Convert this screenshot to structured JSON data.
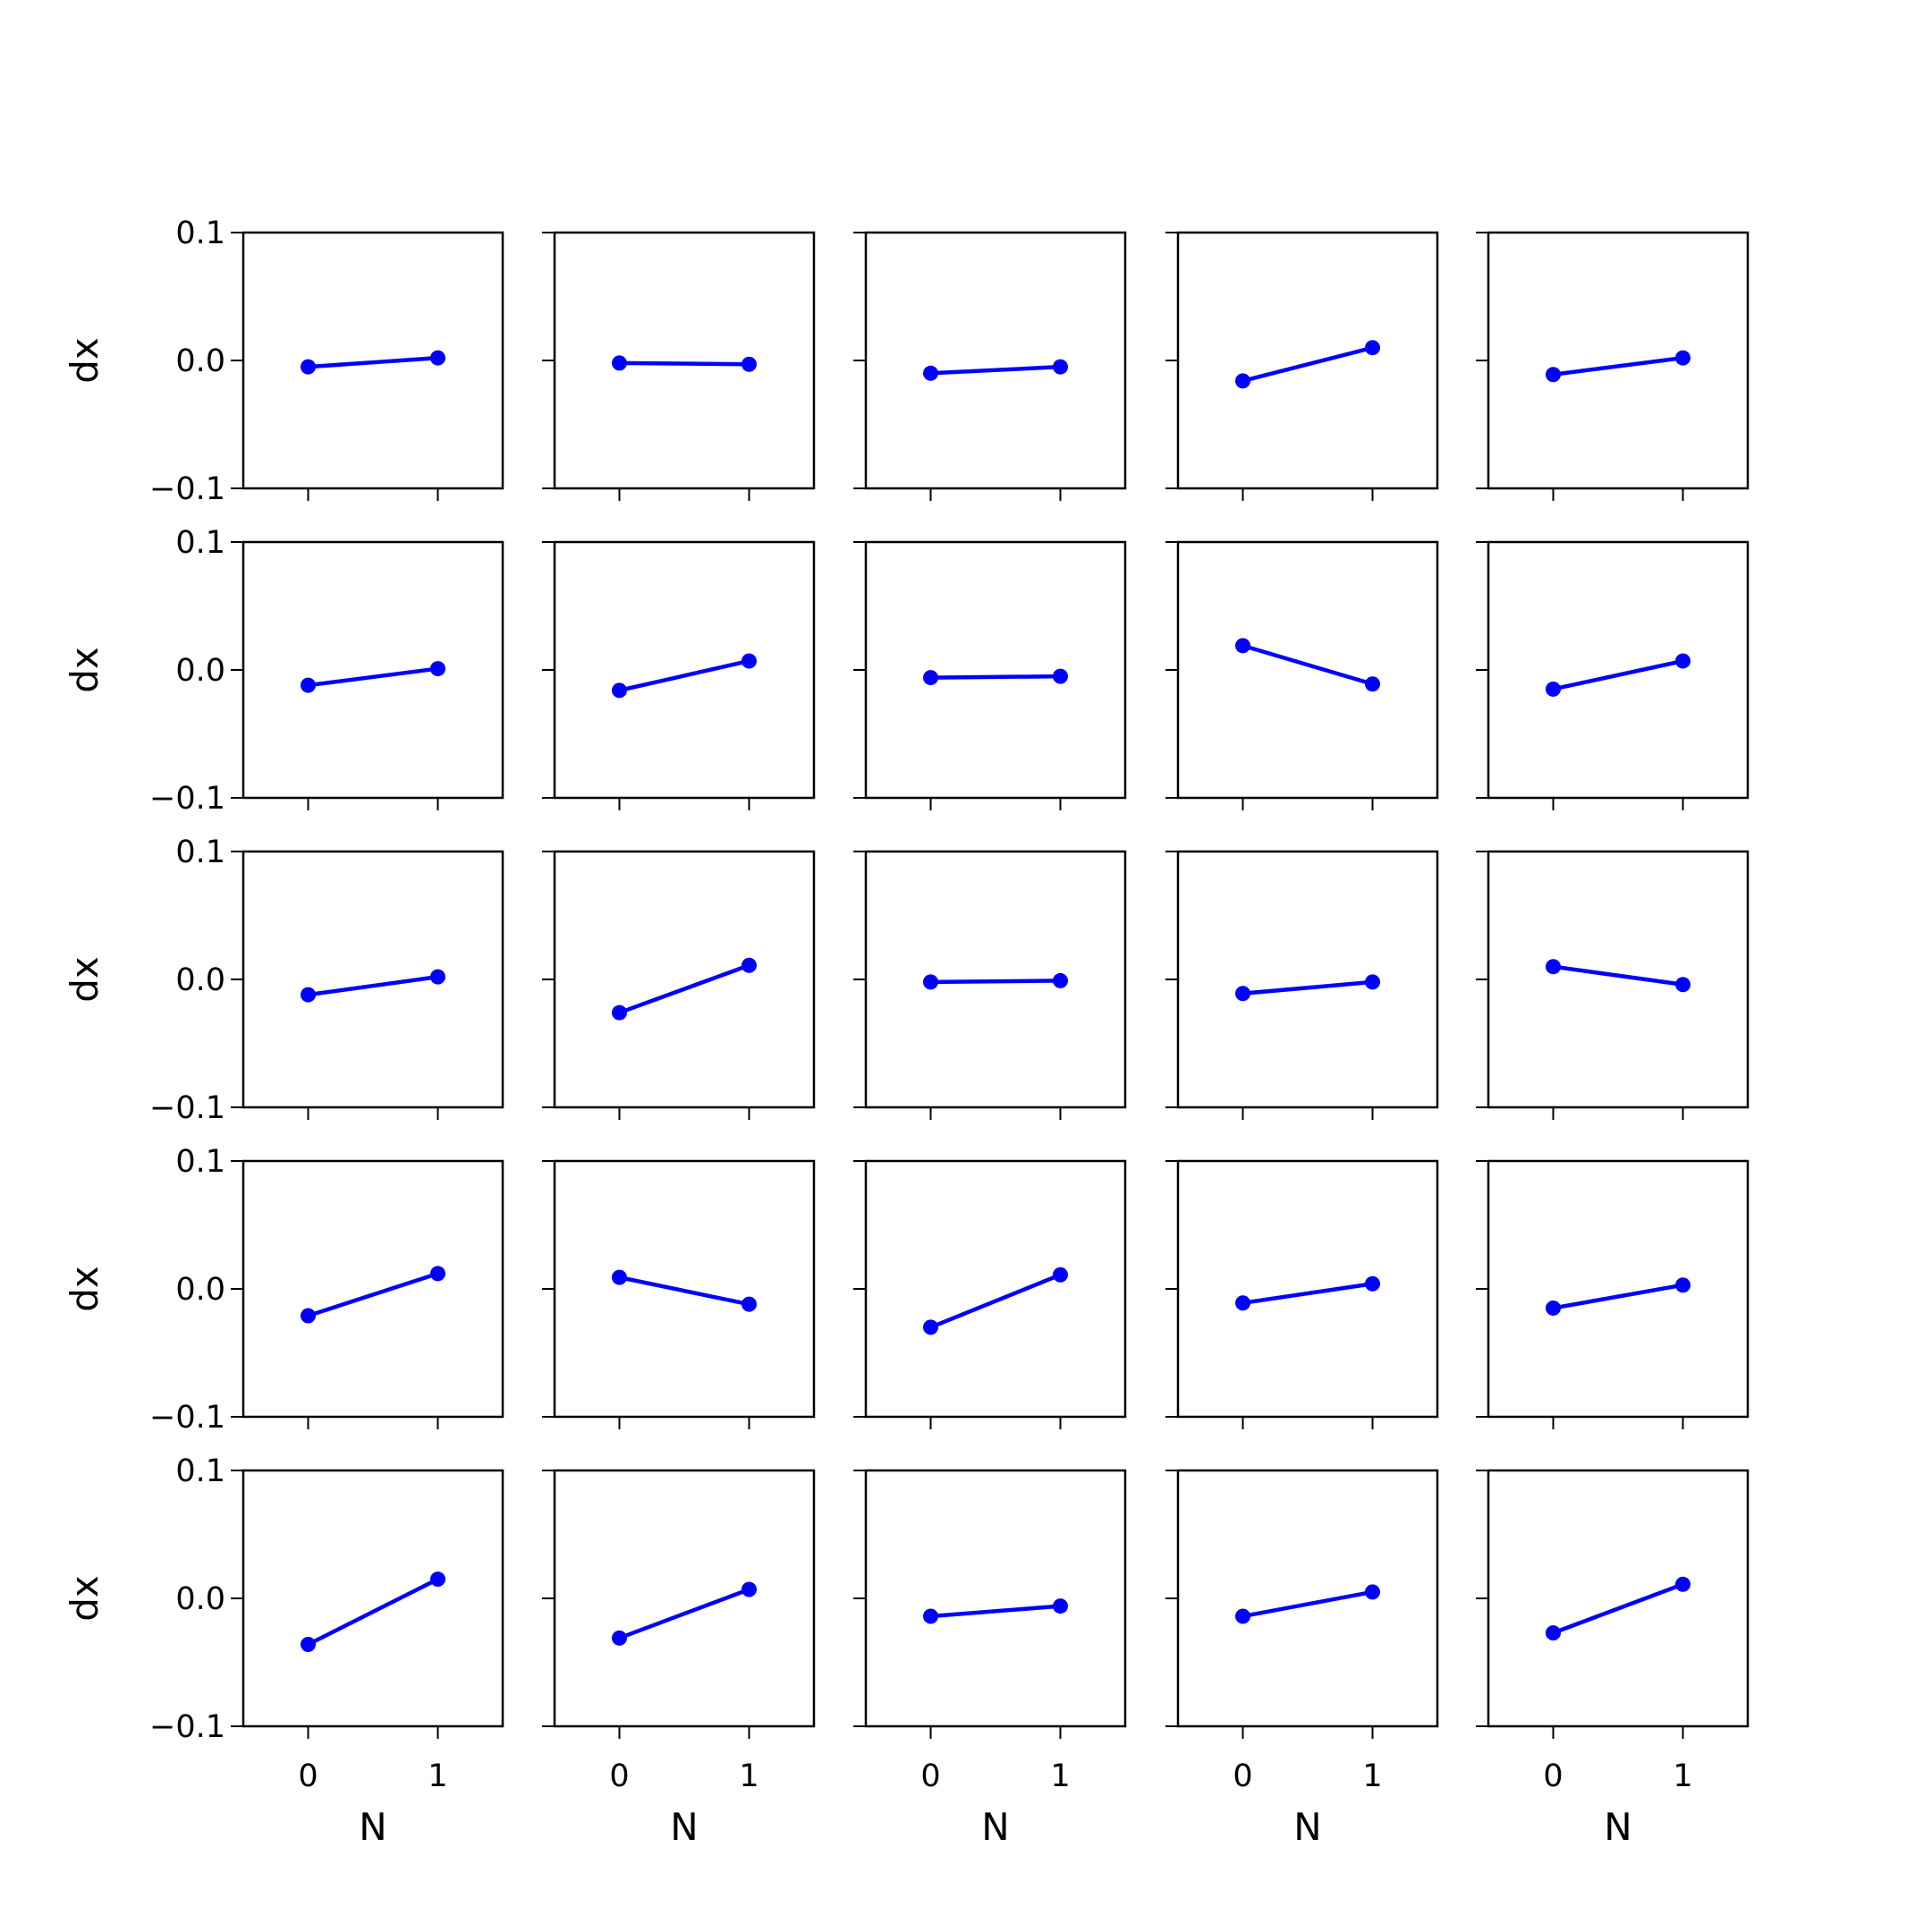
{
  "chart_data": {
    "type": "line",
    "layout": "5x5 grid of subplots, shared x and y axes",
    "xlabel": "N",
    "ylabel": "dx",
    "xlim": [
      -0.5,
      1.5
    ],
    "ylim": [
      -0.1,
      0.1
    ],
    "xticks": [
      0,
      1
    ],
    "yticks": [
      -0.1,
      0.0,
      0.1
    ],
    "xtick_labels": [
      "0",
      "1"
    ],
    "ytick_labels": [
      "−0.1",
      "0.0",
      "0.1"
    ],
    "grid": false,
    "series_color": "#0000ff",
    "marker": "circle",
    "subplots": [
      {
        "x": [
          0,
          1
        ],
        "y": [
          -0.005,
          0.002
        ]
      },
      {
        "x": [
          0,
          1
        ],
        "y": [
          -0.002,
          -0.003
        ]
      },
      {
        "x": [
          0,
          1
        ],
        "y": [
          -0.01,
          -0.005
        ]
      },
      {
        "x": [
          0,
          1
        ],
        "y": [
          -0.016,
          0.01
        ]
      },
      {
        "x": [
          0,
          1
        ],
        "y": [
          -0.011,
          0.002
        ]
      },
      {
        "x": [
          0,
          1
        ],
        "y": [
          -0.012,
          0.001
        ]
      },
      {
        "x": [
          0,
          1
        ],
        "y": [
          -0.016,
          0.007
        ]
      },
      {
        "x": [
          0,
          1
        ],
        "y": [
          -0.006,
          -0.005
        ]
      },
      {
        "x": [
          0,
          1
        ],
        "y": [
          0.019,
          -0.011
        ]
      },
      {
        "x": [
          0,
          1
        ],
        "y": [
          -0.015,
          0.007
        ]
      },
      {
        "x": [
          0,
          1
        ],
        "y": [
          -0.012,
          0.002
        ]
      },
      {
        "x": [
          0,
          1
        ],
        "y": [
          -0.026,
          0.011
        ]
      },
      {
        "x": [
          0,
          1
        ],
        "y": [
          -0.002,
          -0.001
        ]
      },
      {
        "x": [
          0,
          1
        ],
        "y": [
          -0.011,
          -0.002
        ]
      },
      {
        "x": [
          0,
          1
        ],
        "y": [
          0.01,
          -0.004
        ]
      },
      {
        "x": [
          0,
          1
        ],
        "y": [
          -0.021,
          0.012
        ]
      },
      {
        "x": [
          0,
          1
        ],
        "y": [
          0.009,
          -0.012
        ]
      },
      {
        "x": [
          0,
          1
        ],
        "y": [
          -0.03,
          0.011
        ]
      },
      {
        "x": [
          0,
          1
        ],
        "y": [
          -0.011,
          0.004
        ]
      },
      {
        "x": [
          0,
          1
        ],
        "y": [
          -0.015,
          0.003
        ]
      },
      {
        "x": [
          0,
          1
        ],
        "y": [
          -0.036,
          0.015
        ]
      },
      {
        "x": [
          0,
          1
        ],
        "y": [
          -0.031,
          0.007
        ]
      },
      {
        "x": [
          0,
          1
        ],
        "y": [
          -0.014,
          -0.006
        ]
      },
      {
        "x": [
          0,
          1
        ],
        "y": [
          -0.014,
          0.005
        ]
      },
      {
        "x": [
          0,
          1
        ],
        "y": [
          -0.027,
          0.011
        ]
      }
    ]
  }
}
